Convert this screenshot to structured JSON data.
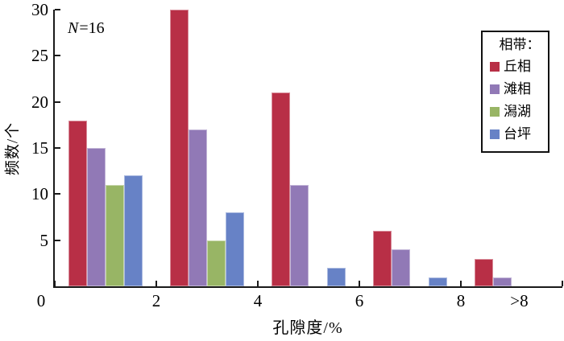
{
  "figure": {
    "annotation": {
      "variable": "N",
      "rest": "=16"
    },
    "background_color": "#ffffff",
    "axis_color": "#1a1a1a"
  },
  "axes": {
    "y_label": "频数/个",
    "x_label": "孔隙度/%",
    "y_ticks": [
      5,
      10,
      15,
      20,
      25,
      30
    ],
    "x_tick_labels": [
      "0",
      "2",
      "4",
      "6",
      "8"
    ],
    "x_overflow_label": ">8"
  },
  "legend": {
    "title": "相带：",
    "items": [
      {
        "label": "丘相",
        "color": "#B82F46"
      },
      {
        "label": "滩相",
        "color": "#9179B6"
      },
      {
        "label": "潟湖",
        "color": "#98B565"
      },
      {
        "label": "台坪",
        "color": "#6782C6"
      }
    ]
  },
  "chart_data": {
    "type": "bar",
    "title": "",
    "xlabel": "孔隙度/%",
    "ylabel": "频数/个",
    "annotation": "N=16",
    "categories": [
      "0-2",
      "2-4",
      "4-6",
      "6-8",
      ">8"
    ],
    "series": [
      {
        "name": "丘相",
        "color": "#B82F46",
        "values": [
          18,
          30,
          21,
          6,
          3
        ]
      },
      {
        "name": "滩相",
        "color": "#9179B6",
        "values": [
          15,
          17,
          11,
          4,
          1
        ]
      },
      {
        "name": "潟湖",
        "color": "#98B565",
        "values": [
          11,
          5,
          null,
          null,
          null
        ]
      },
      {
        "name": "台坪",
        "color": "#6782C6",
        "values": [
          12,
          8,
          2,
          1,
          null
        ]
      }
    ],
    "ylim": [
      0,
      30
    ],
    "x_axis_units": [
      0,
      10
    ],
    "x_major_tick_step": 2,
    "y_major_tick_step": 5,
    "grid": false,
    "legend_position": "upper right",
    "legend_title": "相带："
  }
}
